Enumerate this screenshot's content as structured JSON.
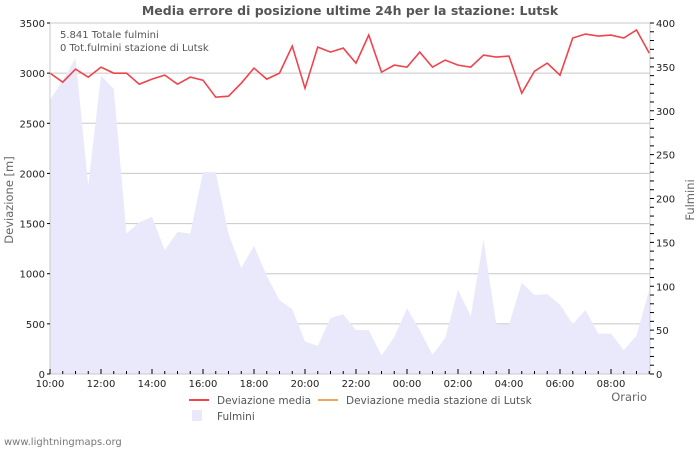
{
  "title": "Media errore di posizione ultime 24h per la stazione: Lutsk",
  "info": {
    "total_lightning": "5.841 Totale fulmini",
    "station_lightning": "0 Tot.fulmini stazione di Lutsk"
  },
  "footer": "www.lightningmaps.org",
  "colors": {
    "deviation_line": "#f0434b",
    "station_line": "#f4a460",
    "lightning_fill": "#e9e9fb",
    "grid": "#c8c8c8"
  },
  "legend": [
    {
      "label": "Deviazione media",
      "color": "#f0434b",
      "kind": "line"
    },
    {
      "label": "Deviazione media stazione di Lutsk",
      "color": "#f4a460",
      "kind": "line"
    },
    {
      "label": "Fulmini",
      "color": "#e9e9fb",
      "kind": "area"
    }
  ],
  "chart_data": {
    "type": "line",
    "title": "Media errore di posizione ultime 24h per la stazione: Lutsk",
    "xlabel": "Orario",
    "ylabel": "Deviazione  [m]",
    "y2label": "Fulmini",
    "ylim": [
      0,
      3500
    ],
    "y2lim": [
      0,
      400
    ],
    "yticks": [
      "0",
      "500",
      "1000",
      "1500",
      "2000",
      "2500",
      "3000",
      "3500"
    ],
    "y2ticks": [
      "0",
      "50",
      "100",
      "150",
      "200",
      "250",
      "300",
      "350",
      "400"
    ],
    "xticks": [
      "10:00",
      "12:00",
      "14:00",
      "16:00",
      "18:00",
      "20:00",
      "22:00",
      "00:00",
      "02:00",
      "04:00",
      "06:00",
      "08:00"
    ],
    "grid": true,
    "legend_position": "bottom",
    "x": [
      "10:00",
      "10:30",
      "11:00",
      "11:30",
      "12:00",
      "12:30",
      "13:00",
      "13:30",
      "14:00",
      "14:30",
      "15:00",
      "15:30",
      "16:00",
      "16:30",
      "17:00",
      "17:30",
      "18:00",
      "18:30",
      "19:00",
      "19:30",
      "20:00",
      "20:30",
      "21:00",
      "21:30",
      "22:00",
      "22:30",
      "23:00",
      "23:30",
      "00:00",
      "00:30",
      "01:00",
      "01:30",
      "02:00",
      "02:30",
      "03:00",
      "03:30",
      "04:00",
      "04:30",
      "05:00",
      "05:30",
      "06:00",
      "06:30",
      "07:00",
      "07:30",
      "08:00",
      "08:30",
      "09:00",
      "09:30"
    ],
    "series": [
      {
        "name": "Deviazione media",
        "axis": "left",
        "type": "line",
        "values": [
          3000,
          2910,
          3040,
          2960,
          3060,
          3000,
          3000,
          2890,
          2940,
          2980,
          2890,
          2960,
          2930,
          2760,
          2770,
          2900,
          3050,
          2940,
          3000,
          3270,
          2850,
          3260,
          3210,
          3250,
          3100,
          3380,
          3010,
          3080,
          3060,
          3210,
          3060,
          3130,
          3080,
          3060,
          3180,
          3160,
          3170,
          2800,
          3020,
          3100,
          2980,
          3350,
          3390,
          3370,
          3380,
          3350,
          3430,
          3200
        ]
      },
      {
        "name": "Deviazione media stazione di Lutsk",
        "axis": "left",
        "type": "line",
        "values": []
      },
      {
        "name": "Fulmini",
        "axis": "right",
        "type": "area",
        "values": [
          312,
          335,
          360,
          215,
          340,
          325,
          160,
          173,
          179,
          141,
          162,
          160,
          230,
          230,
          160,
          121,
          146,
          112,
          84,
          74,
          37,
          32,
          64,
          68,
          50,
          50,
          21,
          42,
          75,
          50,
          22,
          41,
          96,
          66,
          153,
          57,
          56,
          104,
          90,
          91,
          79,
          57,
          73,
          46,
          46,
          27,
          44,
          96
        ]
      }
    ]
  }
}
